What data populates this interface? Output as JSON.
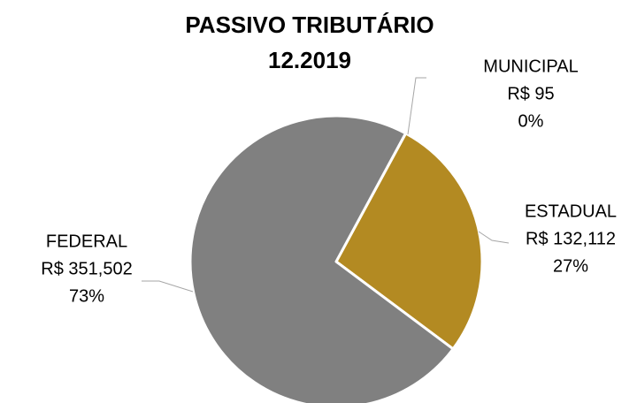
{
  "chart_data": {
    "type": "pie",
    "title": "PASSIVO TRIBUTÁRIO",
    "subtitle": "12.2019",
    "categories": [
      "MUNICIPAL",
      "ESTADUAL",
      "FEDERAL"
    ],
    "values": [
      95,
      132112,
      351502
    ],
    "value_labels": [
      "R$ 95",
      "R$ 132,112",
      "R$ 351,502"
    ],
    "percent_labels": [
      "0%",
      "27%",
      "73%"
    ],
    "colors": [
      "#a5a5a5",
      "#b38a22",
      "#808080"
    ]
  }
}
